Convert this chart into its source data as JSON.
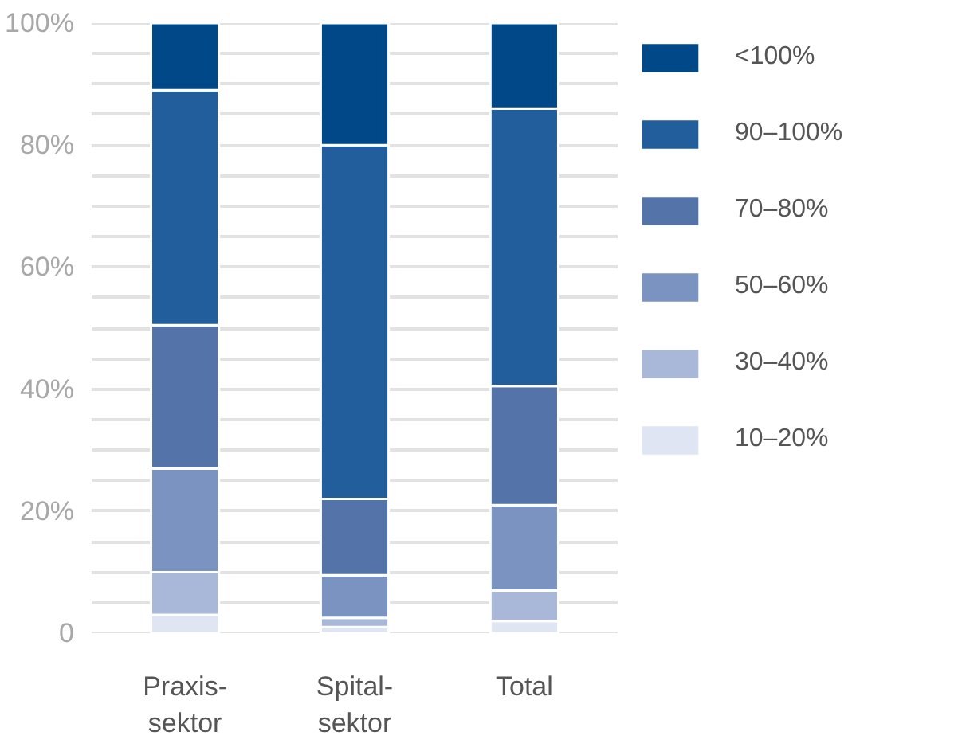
{
  "chart_data": {
    "type": "bar",
    "stacked": true,
    "categories": [
      "Praxis-\nsektor",
      "Spital-\nsektor",
      "Total"
    ],
    "series": [
      {
        "name": "10–20%",
        "color": "#dfe5f2",
        "values": [
          3,
          1,
          2
        ]
      },
      {
        "name": "30–40%",
        "color": "#a9b8d8",
        "values": [
          7,
          1.5,
          5
        ]
      },
      {
        "name": "50–60%",
        "color": "#7b93c0",
        "values": [
          17,
          7,
          14
        ]
      },
      {
        "name": "70–80%",
        "color": "#5473a9",
        "values": [
          23.5,
          12.5,
          19.5
        ]
      },
      {
        "name": "90–100%",
        "color": "#225e9b",
        "values": [
          38.5,
          58,
          45.5
        ]
      },
      {
        "name": "<100%",
        "color": "#014889",
        "values": [
          11,
          20,
          14
        ]
      }
    ],
    "ylim": [
      0,
      100
    ],
    "yticks": [
      {
        "value": 0,
        "label": "0"
      },
      {
        "value": 5,
        "label": null
      },
      {
        "value": 10,
        "label": null
      },
      {
        "value": 15,
        "label": null
      },
      {
        "value": 20,
        "label": "20%"
      },
      {
        "value": 25,
        "label": null
      },
      {
        "value": 30,
        "label": null
      },
      {
        "value": 35,
        "label": null
      },
      {
        "value": 40,
        "label": "40%"
      },
      {
        "value": 45,
        "label": null
      },
      {
        "value": 50,
        "label": null
      },
      {
        "value": 55,
        "label": null
      },
      {
        "value": 60,
        "label": "60%"
      },
      {
        "value": 65,
        "label": null
      },
      {
        "value": 70,
        "label": null
      },
      {
        "value": 75,
        "label": null
      },
      {
        "value": 80,
        "label": "80%"
      },
      {
        "value": 85,
        "label": null
      },
      {
        "value": 90,
        "label": null
      },
      {
        "value": 95,
        "label": null
      },
      {
        "value": 100,
        "label": "100%"
      }
    ],
    "grid": "y",
    "legend": "right"
  }
}
